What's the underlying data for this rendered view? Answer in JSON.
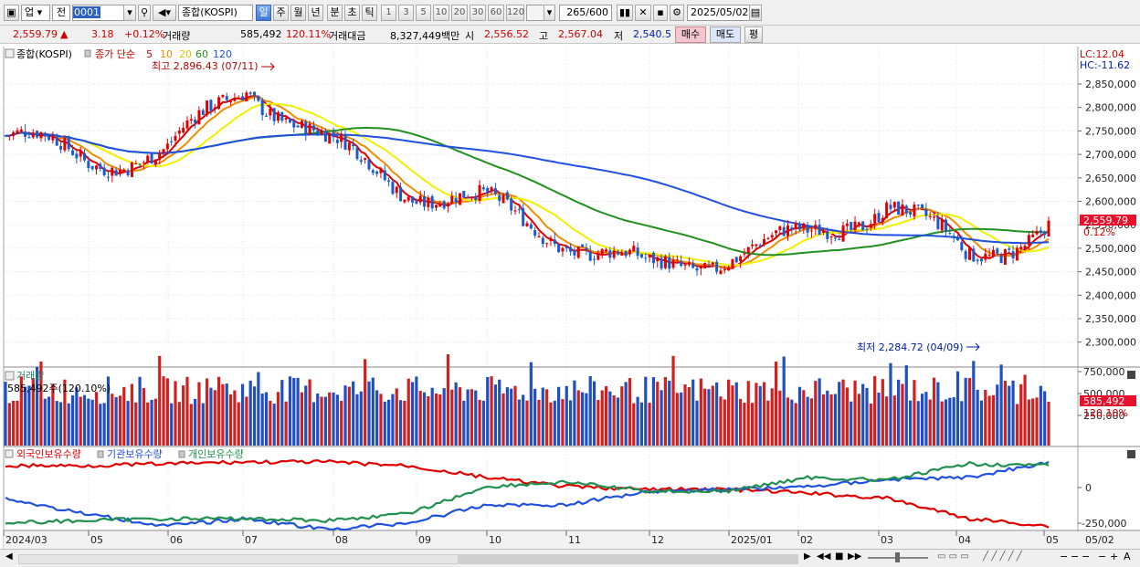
{
  "toolbar": {
    "market_label": "업",
    "prev_label": "전",
    "code_value": "0001",
    "index_name": "종합(KOSPI)",
    "periods": [
      "일",
      "주",
      "월",
      "년",
      "분",
      "초",
      "틱"
    ],
    "selected_period": "일",
    "intervals": [
      "1",
      "3",
      "5",
      "10",
      "20",
      "30",
      "60",
      "120"
    ],
    "count_display": "265",
    "count_total": "/600",
    "date_value": "2025/05/02"
  },
  "quote": {
    "price": "2,559.79",
    "change": "3.18",
    "change_pct": "+0.12%",
    "volume_label": "거래량",
    "volume": "585,492",
    "volume_pct": "120.11%",
    "amount_label": "거래대금",
    "amount": "8,327,449백만",
    "open_label": "시",
    "open": "2,556.52",
    "high_label": "고",
    "high": "2,567.04",
    "low_label": "저",
    "low": "2,540.5",
    "buy_label": "매수",
    "sell_label": "매도",
    "eval_label": "평"
  },
  "price_panel": {
    "title": "종합(KOSPI)",
    "ma_label": "종가 단순",
    "ma_periods": [
      "5",
      "10",
      "20",
      "60",
      "120"
    ],
    "ma_colors": [
      "#e00000",
      "#f08c00",
      "#f0f000",
      "#209020",
      "#2050e0"
    ],
    "high_annotation": "최고 2,896.43 (07/11)",
    "low_annotation": "최저 2,284.72 (04/09)",
    "lc_label": "LC:12.04",
    "hc_label": "HC:-11.62",
    "current_price_tag": "2,559.79",
    "current_pct_tag": "0.12%",
    "y_ticks": [
      "2,850,000",
      "2,800,000",
      "2,750,000",
      "2,700,000",
      "2,650,000",
      "2,600,000",
      "2,550,000",
      "2,500,000",
      "2,450,000",
      "2,400,000",
      "2,350,000",
      "2,300,000"
    ],
    "up_color": "#e00000",
    "down_color": "#1a5cd0"
  },
  "volume_panel": {
    "title": "거래량",
    "value_label": "585,492주(120.10%)",
    "y_ticks": [
      "750,000",
      "500,000",
      "250,000"
    ],
    "current_tag": "585,492",
    "current_pct_tag": "120.10%"
  },
  "holding_panel": {
    "legend": [
      {
        "name": "외국인보유수량",
        "color": "#e00000"
      },
      {
        "name": "기관보유수량",
        "color": "#2050e0"
      },
      {
        "name": "개인보유수량",
        "color": "#209050"
      }
    ],
    "y_ticks": [
      "0",
      "-250,000"
    ]
  },
  "x_axis": {
    "labels": [
      "2024/03",
      "05",
      "06",
      "07",
      "08",
      "09",
      "10",
      "11",
      "12",
      "2025/01",
      "02",
      "03",
      "04",
      "05"
    ],
    "right_label": "05/02"
  },
  "chart_data": {
    "type": "line",
    "x": [
      "2024/03",
      "05",
      "06",
      "07",
      "08",
      "09",
      "10",
      "11",
      "12",
      "2025/01",
      "02",
      "03",
      "04",
      "05"
    ],
    "series": [
      {
        "name": "종합(KOSPI)",
        "values": [
          2740,
          2690,
          2700,
          2850,
          2720,
          2630,
          2590,
          2520,
          2450,
          2490,
          2520,
          2600,
          2480,
          2550
        ]
      }
    ],
    "annotations": [
      "최고 2,896.43 (07/11)",
      "최저 2,284.72 (04/09)"
    ]
  }
}
